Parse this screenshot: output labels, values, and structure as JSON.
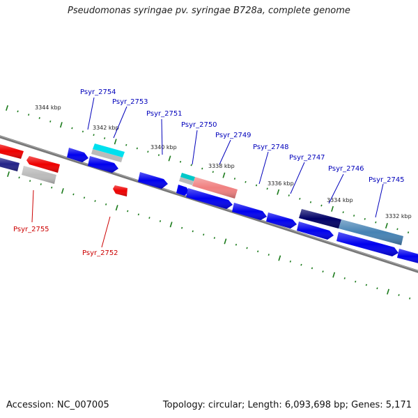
{
  "title": "Pseudomonas syringae pv. syringae B728a, complete genome",
  "footer": {
    "accession": "Accession: NC_007005",
    "summary": "Topology: circular; Length: 6,093,698 bp; Genes: 5,171"
  },
  "colors": {
    "forward_gene": "#0000ee",
    "reverse_gene": "#ee0000",
    "forward_label": "#0000bb",
    "reverse_label": "#cc0000",
    "tick": "#1a7a1a",
    "backbone": "#777777"
  },
  "ruler": [
    {
      "label": "3344 kbp"
    },
    {
      "label": "3342 kbp"
    },
    {
      "label": "3340 kbp"
    },
    {
      "label": "3338 kbp"
    },
    {
      "label": "3336 kbp"
    },
    {
      "label": "3334 kbp"
    },
    {
      "label": "3332 kbp"
    }
  ],
  "gene_labels": [
    {
      "name": "Psyr_2754",
      "strand": "forward"
    },
    {
      "name": "Psyr_2753",
      "strand": "forward"
    },
    {
      "name": "Psyr_2751",
      "strand": "forward"
    },
    {
      "name": "Psyr_2750",
      "strand": "forward"
    },
    {
      "name": "Psyr_2749",
      "strand": "forward"
    },
    {
      "name": "Psyr_2748",
      "strand": "forward"
    },
    {
      "name": "Psyr_2747",
      "strand": "forward"
    },
    {
      "name": "Psyr_2746",
      "strand": "forward"
    },
    {
      "name": "Psyr_2745",
      "strand": "forward"
    },
    {
      "name": "Psyr_2755",
      "strand": "reverse"
    },
    {
      "name": "Psyr_2752",
      "strand": "reverse"
    }
  ]
}
